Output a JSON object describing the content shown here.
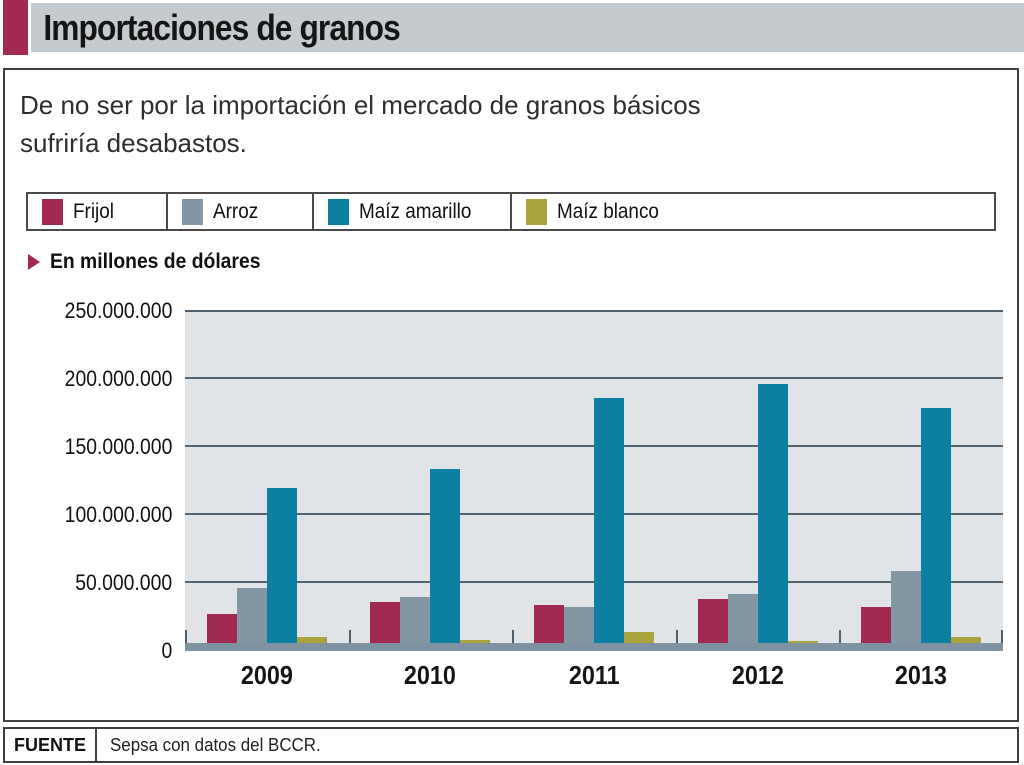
{
  "header": {
    "title": "Importaciones de granos"
  },
  "subtitle": "De no ser por la importación el mercado de granos básicos\nsufriría desabastos.",
  "unit_label": "En millones de dólares",
  "chart_data": {
    "type": "bar",
    "title": "Importaciones de granos",
    "subtitle": "De no ser por la importación el mercado de granos básicos sufriría desabastos.",
    "categories": [
      "2009",
      "2010",
      "2011",
      "2012",
      "2013"
    ],
    "series": [
      {
        "name": "Frijol",
        "color": "#a22a52",
        "values": [
          27000000,
          36000000,
          34000000,
          38000000,
          32000000
        ]
      },
      {
        "name": "Arroz",
        "color": "#8296a4",
        "values": [
          46000000,
          40000000,
          32000000,
          42000000,
          59000000
        ]
      },
      {
        "name": "Maíz amarillo",
        "color": "#0d80a2",
        "values": [
          120000000,
          134000000,
          186000000,
          196000000,
          179000000
        ]
      },
      {
        "name": "Maíz blanco",
        "color": "#a9a43d",
        "values": [
          10000000,
          8000000,
          14000000,
          7000000,
          10000000
        ]
      }
    ],
    "xlabel": "",
    "ylabel": "En millones de dólares",
    "ylim": [
      0,
      250000000
    ],
    "y_ticks": [
      "250.000.000",
      "200.000.000",
      "150.000.000",
      "100.000.000",
      "50.000.000",
      "0"
    ],
    "grid": true,
    "legend_position": "top",
    "plot_bg": "#e1e4e7",
    "gridline_color": "#55636e",
    "baseline_color": "#7e92a2"
  },
  "footer": {
    "label": "FUENTE",
    "source": "Sepsa con datos del BCCR."
  }
}
